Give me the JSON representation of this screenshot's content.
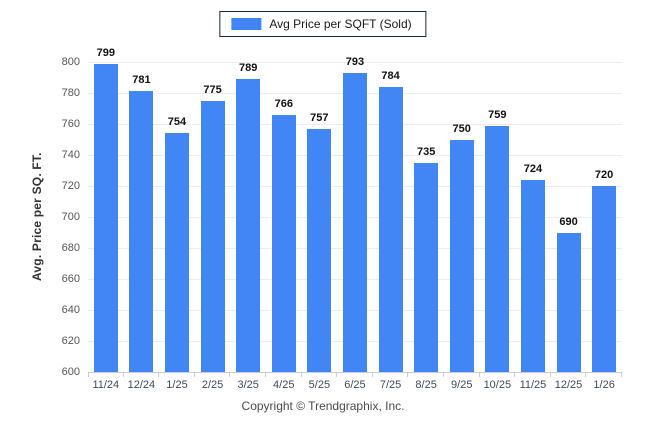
{
  "legend": {
    "label": "Avg Price per SQFT (Sold)",
    "swatch_color": "#4285f4"
  },
  "footer": {
    "text": "Copyright © Trendgraphix, Inc."
  },
  "chart_data": {
    "type": "bar",
    "title": "",
    "series_name": "Avg Price per SQFT (Sold)",
    "categories": [
      "11/24",
      "12/24",
      "1/25",
      "2/25",
      "3/25",
      "4/25",
      "5/25",
      "6/25",
      "7/25",
      "8/25",
      "9/25",
      "10/25",
      "11/25",
      "12/25",
      "1/26"
    ],
    "values": [
      799,
      781,
      754,
      775,
      789,
      766,
      757,
      793,
      784,
      735,
      750,
      759,
      724,
      690,
      720
    ],
    "xlabel": "",
    "ylabel": "Avg. Price per SQ. FT.",
    "ylim": [
      600,
      800
    ],
    "ytick_step": 20,
    "grid": true,
    "legend_position": "top-center",
    "bar_color": "#4285f4",
    "value_labels": true
  }
}
